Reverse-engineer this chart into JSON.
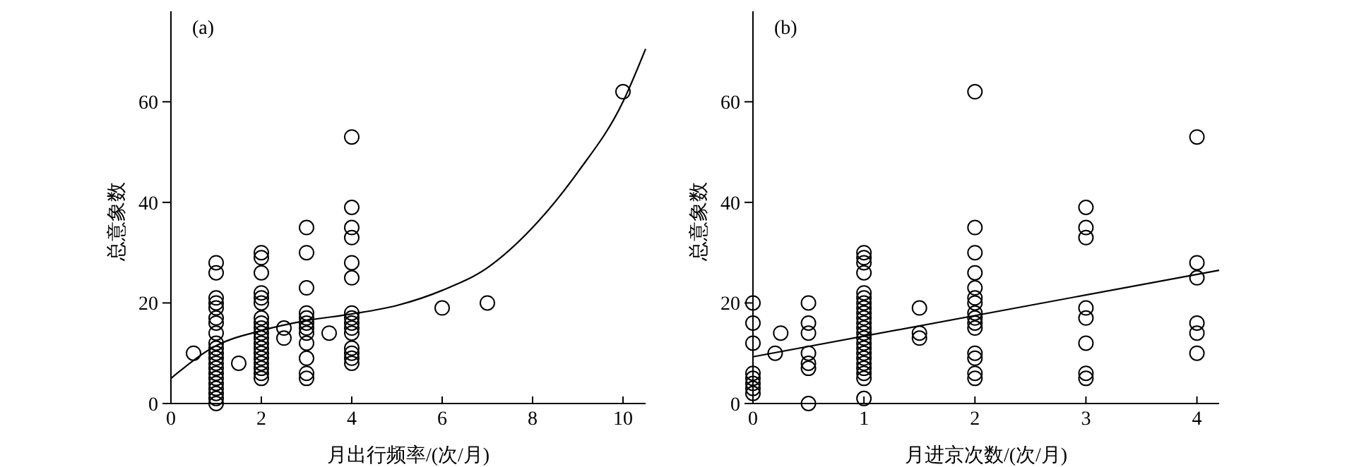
{
  "chart_data": [
    {
      "type": "scatter",
      "xlabel": "月出行频率/(次/月)",
      "ylabel": "总意象数",
      "annotations": [
        "(a)"
      ],
      "xlim": [
        0,
        10.5
      ],
      "ylim": [
        0,
        78
      ],
      "xticks": [
        0,
        2,
        4,
        6,
        8,
        10
      ],
      "yticks": [
        0,
        20,
        40,
        60
      ],
      "series": [
        {
          "type": "scatter",
          "color": "#000000",
          "marker": "circle",
          "x": [
            0.5,
            1,
            1,
            1,
            1,
            1,
            1,
            1,
            1,
            1,
            1,
            1,
            1,
            1,
            1,
            1,
            1,
            1,
            1,
            1,
            1,
            1,
            1.5,
            2,
            2,
            2,
            2,
            2,
            2,
            2,
            2,
            2,
            2,
            2,
            2,
            2,
            2,
            2,
            2,
            2,
            2,
            2,
            2.5,
            2.5,
            3,
            3,
            3,
            3,
            3,
            3,
            3,
            3,
            3,
            3,
            3,
            3,
            3.5,
            4,
            4,
            4,
            4,
            4,
            4,
            4,
            4,
            4,
            4,
            4,
            4,
            4,
            4,
            4,
            6,
            7,
            10
          ],
          "values": [
            10,
            0,
            1,
            2,
            3,
            4,
            5,
            6,
            7,
            8,
            9,
            10,
            11,
            12,
            14,
            16,
            17,
            19,
            20,
            21,
            26,
            28,
            8,
            5,
            6,
            7,
            8,
            9,
            10,
            11,
            12,
            13,
            14,
            15,
            16,
            17,
            20,
            21,
            22,
            26,
            29,
            30,
            13,
            15,
            5,
            6,
            9,
            12,
            14,
            15,
            16,
            17,
            18,
            23,
            30,
            35,
            14,
            8,
            9,
            10,
            11,
            14,
            15,
            16,
            17,
            18,
            25,
            28,
            33,
            35,
            39,
            53,
            19,
            20,
            62
          ]
        },
        {
          "type": "line",
          "color": "#000000",
          "marker": "none",
          "line_style": "solid",
          "x": [
            0,
            1,
            2,
            3,
            4,
            5,
            6,
            7,
            8,
            9,
            10,
            10.5
          ],
          "values": [
            5,
            11.5,
            14.5,
            16.5,
            17.8,
            19.5,
            22.5,
            27,
            35,
            46,
            60,
            70.5
          ]
        }
      ]
    },
    {
      "type": "scatter",
      "xlabel": "月进京次数/(次/月)",
      "ylabel": "总意象数",
      "annotations": [
        "(b)"
      ],
      "xlim": [
        0,
        4.2
      ],
      "ylim": [
        0,
        78
      ],
      "xticks": [
        0,
        1,
        2,
        3,
        4
      ],
      "yticks": [
        0,
        20,
        40,
        60
      ],
      "series": [
        {
          "type": "scatter",
          "color": "#000000",
          "marker": "circle",
          "x": [
            0,
            0,
            0,
            0,
            0,
            0,
            0,
            0,
            0.2,
            0.25,
            0.5,
            0.5,
            0.5,
            0.5,
            0.5,
            0.5,
            0.5,
            1,
            1,
            1,
            1,
            1,
            1,
            1,
            1,
            1,
            1,
            1,
            1,
            1,
            1,
            1,
            1,
            1,
            1,
            1,
            1,
            1,
            1,
            1,
            1.5,
            1.5,
            1.5,
            2,
            2,
            2,
            2,
            2,
            2,
            2,
            2,
            2,
            2,
            2,
            2,
            2,
            2,
            2,
            3,
            3,
            3,
            3,
            3,
            3,
            3,
            3,
            4,
            4,
            4,
            4,
            4,
            4
          ],
          "values": [
            2,
            3,
            4,
            5,
            6,
            12,
            16,
            20,
            10,
            14,
            0,
            7,
            8,
            10,
            14,
            16,
            20,
            1,
            5,
            6,
            7,
            8,
            9,
            10,
            11,
            12,
            13,
            14,
            15,
            16,
            17,
            18,
            19,
            20,
            21,
            22,
            26,
            28,
            29,
            30,
            13,
            14,
            19,
            5,
            6,
            9,
            10,
            15,
            16,
            17,
            18,
            20,
            21,
            23,
            26,
            30,
            35,
            62,
            5,
            6,
            12,
            17,
            19,
            33,
            35,
            39,
            10,
            14,
            16,
            25,
            28,
            53
          ]
        },
        {
          "type": "line",
          "color": "#000000",
          "marker": "none",
          "line_style": "solid",
          "x": [
            0,
            4.2
          ],
          "values": [
            9.3,
            26.5
          ]
        }
      ]
    }
  ]
}
